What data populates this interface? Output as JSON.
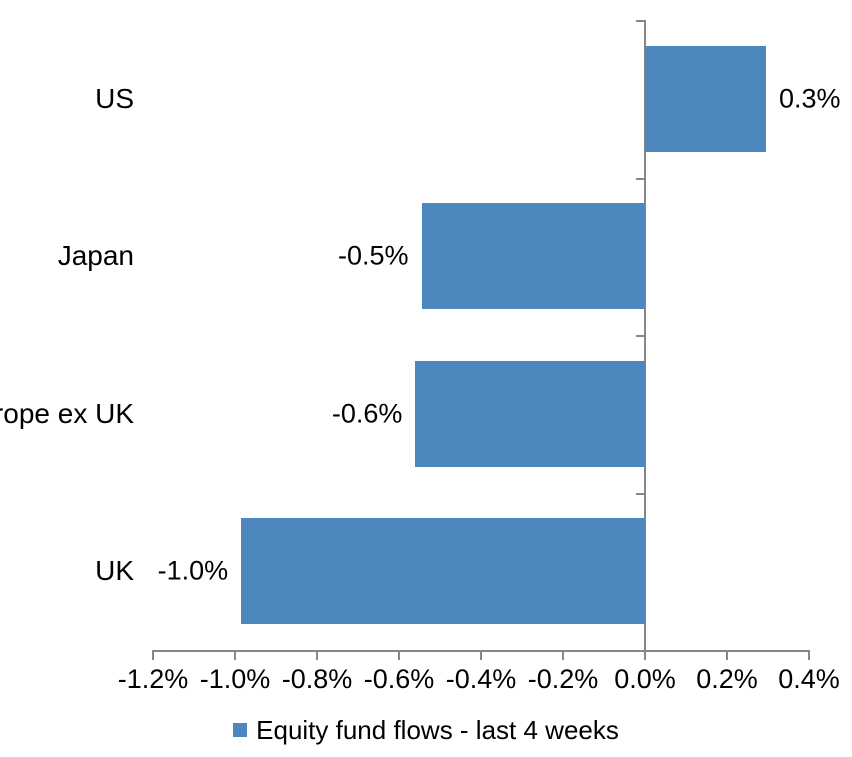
{
  "chart_data": {
    "type": "bar",
    "orientation": "horizontal",
    "title": "",
    "xlabel": "",
    "ylabel": "",
    "categories": [
      "US",
      "Japan",
      "Europe ex UK",
      "UK"
    ],
    "values": [
      0.3,
      -0.5,
      -0.6,
      -1.0
    ],
    "bar_values_precise": [
      0.295,
      -0.545,
      -0.56,
      -0.985
    ],
    "data_labels": [
      "0.3%",
      "-0.5%",
      "-0.6%",
      "-1.0%"
    ],
    "series": [
      {
        "name": "Equity fund flows - last 4 weeks",
        "values": [
          0.3,
          -0.5,
          -0.6,
          -1.0
        ]
      }
    ],
    "xlim": [
      -1.2,
      0.4
    ],
    "x_ticks": [
      -1.2,
      -1.0,
      -0.8,
      -0.6,
      -0.4,
      -0.2,
      0.0,
      0.2,
      0.4
    ],
    "x_tick_labels": [
      "-1.2%",
      "-1.0%",
      "-0.8%",
      "-0.6%",
      "-0.4%",
      "-0.2%",
      "0.0%",
      "0.2%",
      "0.4%"
    ],
    "grid": false,
    "legend_position": "bottom",
    "colors": {
      "bar": "#4E87BE",
      "axis": "#868686",
      "text": "#000000"
    }
  },
  "legend": {
    "label": "Equity fund flows - last 4 weeks"
  }
}
